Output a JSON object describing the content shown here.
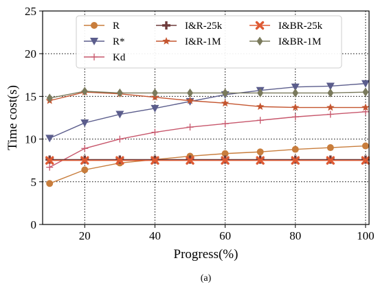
{
  "chart_data": {
    "type": "line",
    "xlabel": "Progress(%)",
    "ylabel": "Time cost(s)",
    "caption": "(a)",
    "xlim": [
      8,
      101
    ],
    "ylim": [
      0,
      25
    ],
    "xticks": [
      20,
      40,
      60,
      80,
      100
    ],
    "yticks": [
      0,
      5,
      10,
      15,
      20,
      25
    ],
    "grid": true,
    "legend_position": "top",
    "x": [
      10,
      20,
      30,
      40,
      50,
      60,
      70,
      80,
      90,
      100
    ],
    "series": [
      {
        "name": "R",
        "color": "#c87d3c",
        "marker": "circle",
        "values": [
          4.8,
          6.4,
          7.2,
          7.6,
          8.0,
          8.3,
          8.5,
          8.8,
          9.0,
          9.2
        ]
      },
      {
        "name": "R*",
        "color": "#5b5d8c",
        "marker": "triangle-down",
        "values": [
          10.1,
          11.9,
          12.9,
          13.6,
          14.4,
          15.2,
          15.7,
          16.1,
          16.2,
          16.5
        ]
      },
      {
        "name": "Kd",
        "color": "#c7566b",
        "marker": "plus",
        "values": [
          6.7,
          8.9,
          10.0,
          10.8,
          11.4,
          11.8,
          12.2,
          12.6,
          12.9,
          13.2
        ]
      },
      {
        "name": "I&R-25k",
        "color": "#6e3b3b",
        "marker": "plus-bold",
        "values": [
          7.6,
          7.6,
          7.6,
          7.6,
          7.6,
          7.6,
          7.6,
          7.6,
          7.6,
          7.6
        ]
      },
      {
        "name": "I&R-1M",
        "color": "#c4552f",
        "marker": "star",
        "values": [
          14.5,
          15.5,
          15.3,
          14.9,
          14.5,
          14.2,
          13.8,
          13.7,
          13.7,
          13.7
        ]
      },
      {
        "name": "I&BR-25k",
        "color": "#de5a33",
        "marker": "x-bold",
        "values": [
          7.5,
          7.5,
          7.5,
          7.5,
          7.5,
          7.5,
          7.5,
          7.5,
          7.5,
          7.5
        ]
      },
      {
        "name": "I&BR-1M",
        "color": "#7a7a5c",
        "marker": "diamond",
        "values": [
          14.8,
          15.6,
          15.4,
          15.4,
          15.4,
          15.4,
          15.4,
          15.4,
          15.4,
          15.5
        ]
      }
    ]
  }
}
